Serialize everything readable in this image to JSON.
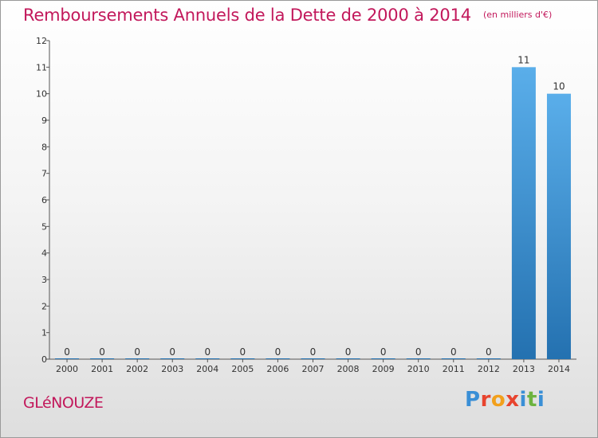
{
  "title": "Remboursements Annuels de la Dette de 2000 à 2014",
  "unit_note": "(en milliers d'€)",
  "commune": "GLéNOUZE",
  "brand_letters": [
    "P",
    "r",
    "o",
    "x",
    "i",
    "t",
    "i"
  ],
  "colors": {
    "title": "#c2185b",
    "bar_light": "#5aaeea",
    "bar_dark": "#2471b0",
    "axis": "#333333"
  },
  "chart_data": {
    "type": "bar",
    "categories": [
      "2000",
      "2001",
      "2002",
      "2003",
      "2004",
      "2005",
      "2006",
      "2007",
      "2008",
      "2009",
      "2010",
      "2011",
      "2012",
      "2013",
      "2014"
    ],
    "values": [
      0,
      0,
      0,
      0,
      0,
      0,
      0,
      0,
      0,
      0,
      0,
      0,
      0,
      11,
      10
    ],
    "title": "Remboursements Annuels de la Dette de 2000 à 2014",
    "ylabel": "",
    "xlabel": "",
    "ylim": [
      0,
      12
    ],
    "yticks": [
      0,
      1,
      2,
      3,
      4,
      5,
      6,
      7,
      8,
      9,
      10,
      11,
      12
    ],
    "grid": false,
    "legend": "none"
  }
}
